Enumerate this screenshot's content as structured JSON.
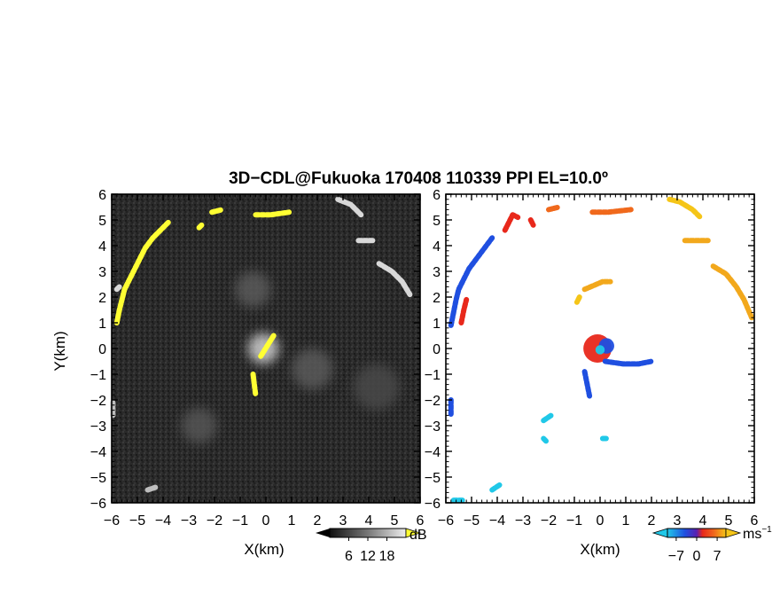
{
  "title": "3D−CDL@Fukuoka 170408 110339 PPI EL=10.0º",
  "panels": [
    {
      "id": "reflectivity",
      "xlabel": "X(km)",
      "ylabel": "Y(km)",
      "colorbar": {
        "ticks": [
          "6",
          "12",
          "18"
        ],
        "unit": "dB",
        "range": [
          0,
          24
        ]
      }
    },
    {
      "id": "velocity",
      "xlabel": "X(km)",
      "ylabel": "",
      "colorbar": {
        "ticks": [
          "−7",
          "0",
          "7"
        ],
        "unit": "ms",
        "unit_exp": "−1",
        "range": [
          -10,
          10
        ]
      }
    }
  ],
  "chart_data": [
    {
      "type": "heatmap",
      "name": "reflectivity",
      "xlim": [
        -6,
        6
      ],
      "ylim": [
        -6,
        6
      ],
      "xticks": [
        "−6",
        "−5",
        "−4",
        "−3",
        "−2",
        "−1",
        "0",
        "1",
        "2",
        "3",
        "4",
        "5",
        "6"
      ],
      "yticks": [
        "−6",
        "−5",
        "−4",
        "−3",
        "−2",
        "−1",
        "0",
        "1",
        "2",
        "3",
        "4",
        "5",
        "6"
      ],
      "grid": false,
      "background": "#2a2a2a",
      "features": [
        {
          "kind": "echo",
          "color": "#ffff33",
          "points": [
            [
              -5.8,
              1.0
            ],
            [
              -5.7,
              1.5
            ],
            [
              -5.6,
              1.9
            ],
            [
              -5.5,
              2.3
            ],
            [
              -5.3,
              2.7
            ],
            [
              -5.1,
              3.1
            ],
            [
              -4.9,
              3.5
            ],
            [
              -4.7,
              3.9
            ],
            [
              -4.4,
              4.3
            ],
            [
              -4.1,
              4.6
            ],
            [
              -3.8,
              4.9
            ]
          ]
        },
        {
          "kind": "echo",
          "color": "#ffff33",
          "points": [
            [
              -2.1,
              5.3
            ],
            [
              -1.7,
              5.4
            ]
          ]
        },
        {
          "kind": "echo",
          "color": "#ffff33",
          "points": [
            [
              -0.4,
              5.2
            ],
            [
              0.2,
              5.2
            ],
            [
              0.9,
              5.3
            ]
          ]
        },
        {
          "kind": "echo",
          "color": "#ffff33",
          "points": [
            [
              -2.6,
              4.7
            ],
            [
              -2.5,
              4.8
            ]
          ]
        },
        {
          "kind": "echo",
          "color": "#ffff33",
          "points": [
            [
              -0.5,
              -1.0
            ],
            [
              -0.45,
              -1.4
            ],
            [
              -0.4,
              -1.8
            ]
          ]
        },
        {
          "kind": "echo",
          "color": "#ffff33",
          "points": [
            [
              -0.2,
              -0.3
            ],
            [
              0.3,
              0.5
            ]
          ]
        },
        {
          "kind": "echo",
          "color": "#d8d8d8",
          "points": [
            [
              2.8,
              5.8
            ],
            [
              3.3,
              5.6
            ],
            [
              3.7,
              5.2
            ]
          ]
        },
        {
          "kind": "echo",
          "color": "#d8d8d8",
          "points": [
            [
              3.6,
              4.2
            ],
            [
              4.2,
              4.2
            ]
          ]
        },
        {
          "kind": "echo",
          "color": "#d8d8d8",
          "points": [
            [
              4.4,
              3.3
            ],
            [
              4.9,
              3.0
            ],
            [
              5.3,
              2.6
            ],
            [
              5.6,
              2.1
            ]
          ]
        },
        {
          "kind": "echo",
          "color": "#d8d8d8",
          "points": [
            [
              -5.8,
              2.3
            ],
            [
              -5.7,
              2.4
            ]
          ]
        },
        {
          "kind": "echo",
          "color": "#bdbdbd",
          "points": [
            [
              -4.6,
              -5.5
            ],
            [
              -4.3,
              -5.4
            ]
          ]
        },
        {
          "kind": "echo",
          "color": "#bdbdbd",
          "points": [
            [
              -5.95,
              -2.1
            ],
            [
              -5.95,
              -2.6
            ]
          ]
        },
        {
          "kind": "blob",
          "color": "#d0d0d0",
          "center": [
            -0.1,
            0.0
          ],
          "r": 0.6
        },
        {
          "kind": "blob",
          "color": "#5a5a5a",
          "center": [
            -0.5,
            2.3
          ],
          "r": 0.7
        },
        {
          "kind": "blob",
          "color": "#5a5a5a",
          "center": [
            1.8,
            -0.8
          ],
          "r": 0.8
        },
        {
          "kind": "blob",
          "color": "#555555",
          "center": [
            -2.6,
            -3.0
          ],
          "r": 0.7
        },
        {
          "kind": "blob",
          "color": "#4a4a4a",
          "center": [
            4.3,
            -1.5
          ],
          "r": 0.9
        }
      ]
    },
    {
      "type": "heatmap",
      "name": "velocity",
      "xlim": [
        -6,
        6
      ],
      "ylim": [
        -6,
        6
      ],
      "xticks": [
        "−6",
        "−5",
        "−4",
        "−3",
        "−2",
        "−1",
        "0",
        "1",
        "2",
        "3",
        "4",
        "5",
        "6"
      ],
      "yticks": [
        "−6",
        "−5",
        "−4",
        "−3",
        "−2",
        "−1",
        "0",
        "1",
        "2",
        "3",
        "4",
        "5",
        "6"
      ],
      "grid": false,
      "background": "#ffffff",
      "features": [
        {
          "kind": "echo",
          "color": "#1f4fe0",
          "points": [
            [
              -5.8,
              0.9
            ],
            [
              -5.7,
              1.4
            ],
            [
              -5.6,
              1.9
            ],
            [
              -5.5,
              2.3
            ],
            [
              -5.3,
              2.7
            ],
            [
              -5.1,
              3.1
            ],
            [
              -4.8,
              3.5
            ],
            [
              -4.5,
              3.9
            ],
            [
              -4.2,
              4.3
            ]
          ]
        },
        {
          "kind": "echo",
          "color": "#e8281b",
          "points": [
            [
              -5.4,
              1.0
            ],
            [
              -5.3,
              1.5
            ],
            [
              -5.2,
              1.9
            ]
          ]
        },
        {
          "kind": "echo",
          "color": "#e8281b",
          "points": [
            [
              -3.7,
              4.6
            ],
            [
              -3.4,
              5.2
            ],
            [
              -3.2,
              5.1
            ]
          ]
        },
        {
          "kind": "echo",
          "color": "#e8281b",
          "points": [
            [
              -2.7,
              5.0
            ],
            [
              -2.6,
              4.8
            ]
          ]
        },
        {
          "kind": "echo",
          "color": "#f0691c",
          "points": [
            [
              -2.0,
              5.4
            ],
            [
              -1.6,
              5.5
            ]
          ]
        },
        {
          "kind": "echo",
          "color": "#f0691c",
          "points": [
            [
              -0.3,
              5.3
            ],
            [
              0.3,
              5.3
            ],
            [
              1.2,
              5.4
            ]
          ]
        },
        {
          "kind": "echo",
          "color": "#f5c518",
          "points": [
            [
              2.7,
              5.8
            ],
            [
              3.1,
              5.7
            ],
            [
              3.6,
              5.4
            ],
            [
              3.9,
              5.1
            ]
          ]
        },
        {
          "kind": "echo",
          "color": "#f2a81c",
          "points": [
            [
              3.3,
              4.2
            ],
            [
              4.2,
              4.2
            ]
          ]
        },
        {
          "kind": "echo",
          "color": "#f2a81c",
          "points": [
            [
              4.4,
              3.2
            ],
            [
              4.9,
              2.9
            ],
            [
              5.3,
              2.4
            ],
            [
              5.6,
              1.9
            ],
            [
              5.9,
              1.2
            ]
          ]
        },
        {
          "kind": "echo",
          "color": "#f2a81c",
          "points": [
            [
              -0.6,
              2.3
            ],
            [
              0.1,
              2.6
            ],
            [
              0.4,
              2.6
            ]
          ]
        },
        {
          "kind": "echo",
          "color": "#f5c518",
          "points": [
            [
              -0.8,
              2.0
            ],
            [
              -0.9,
              1.8
            ]
          ]
        },
        {
          "kind": "echo",
          "color": "#1f4fe0",
          "points": [
            [
              0.2,
              -0.5
            ],
            [
              0.9,
              -0.6
            ],
            [
              1.5,
              -0.6
            ],
            [
              2.0,
              -0.5
            ]
          ]
        },
        {
          "kind": "echo",
          "color": "#1f4fe0",
          "points": [
            [
              -0.6,
              -0.9
            ],
            [
              -0.5,
              -1.4
            ],
            [
              -0.4,
              -1.9
            ]
          ]
        },
        {
          "kind": "echo",
          "color": "#1f4fe0",
          "points": [
            [
              -5.8,
              -2.0
            ],
            [
              -5.8,
              -2.6
            ]
          ]
        },
        {
          "kind": "echo",
          "color": "#20c8e8",
          "points": [
            [
              -5.7,
              -5.9
            ],
            [
              -5.3,
              -5.9
            ]
          ]
        },
        {
          "kind": "echo",
          "color": "#20c8e8",
          "points": [
            [
              -4.2,
              -5.5
            ],
            [
              -3.9,
              -5.3
            ]
          ]
        },
        {
          "kind": "echo",
          "color": "#20c8e8",
          "points": [
            [
              -2.2,
              -2.8
            ],
            [
              -1.9,
              -2.6
            ]
          ]
        },
        {
          "kind": "echo",
          "color": "#20c8e8",
          "points": [
            [
              -2.2,
              -3.5
            ],
            [
              -2.1,
              -3.6
            ]
          ]
        },
        {
          "kind": "echo",
          "color": "#20c8e8",
          "points": [
            [
              0.1,
              -3.5
            ],
            [
              0.3,
              -3.5
            ]
          ]
        },
        {
          "kind": "blob",
          "color": "#e8281b",
          "center": [
            -0.1,
            0.0
          ],
          "r": 0.55
        },
        {
          "kind": "blob",
          "color": "#1f4fe0",
          "center": [
            0.25,
            0.1
          ],
          "r": 0.3
        },
        {
          "kind": "blob",
          "color": "#20c8e8",
          "center": [
            0.0,
            -0.05
          ],
          "r": 0.18
        }
      ]
    }
  ]
}
